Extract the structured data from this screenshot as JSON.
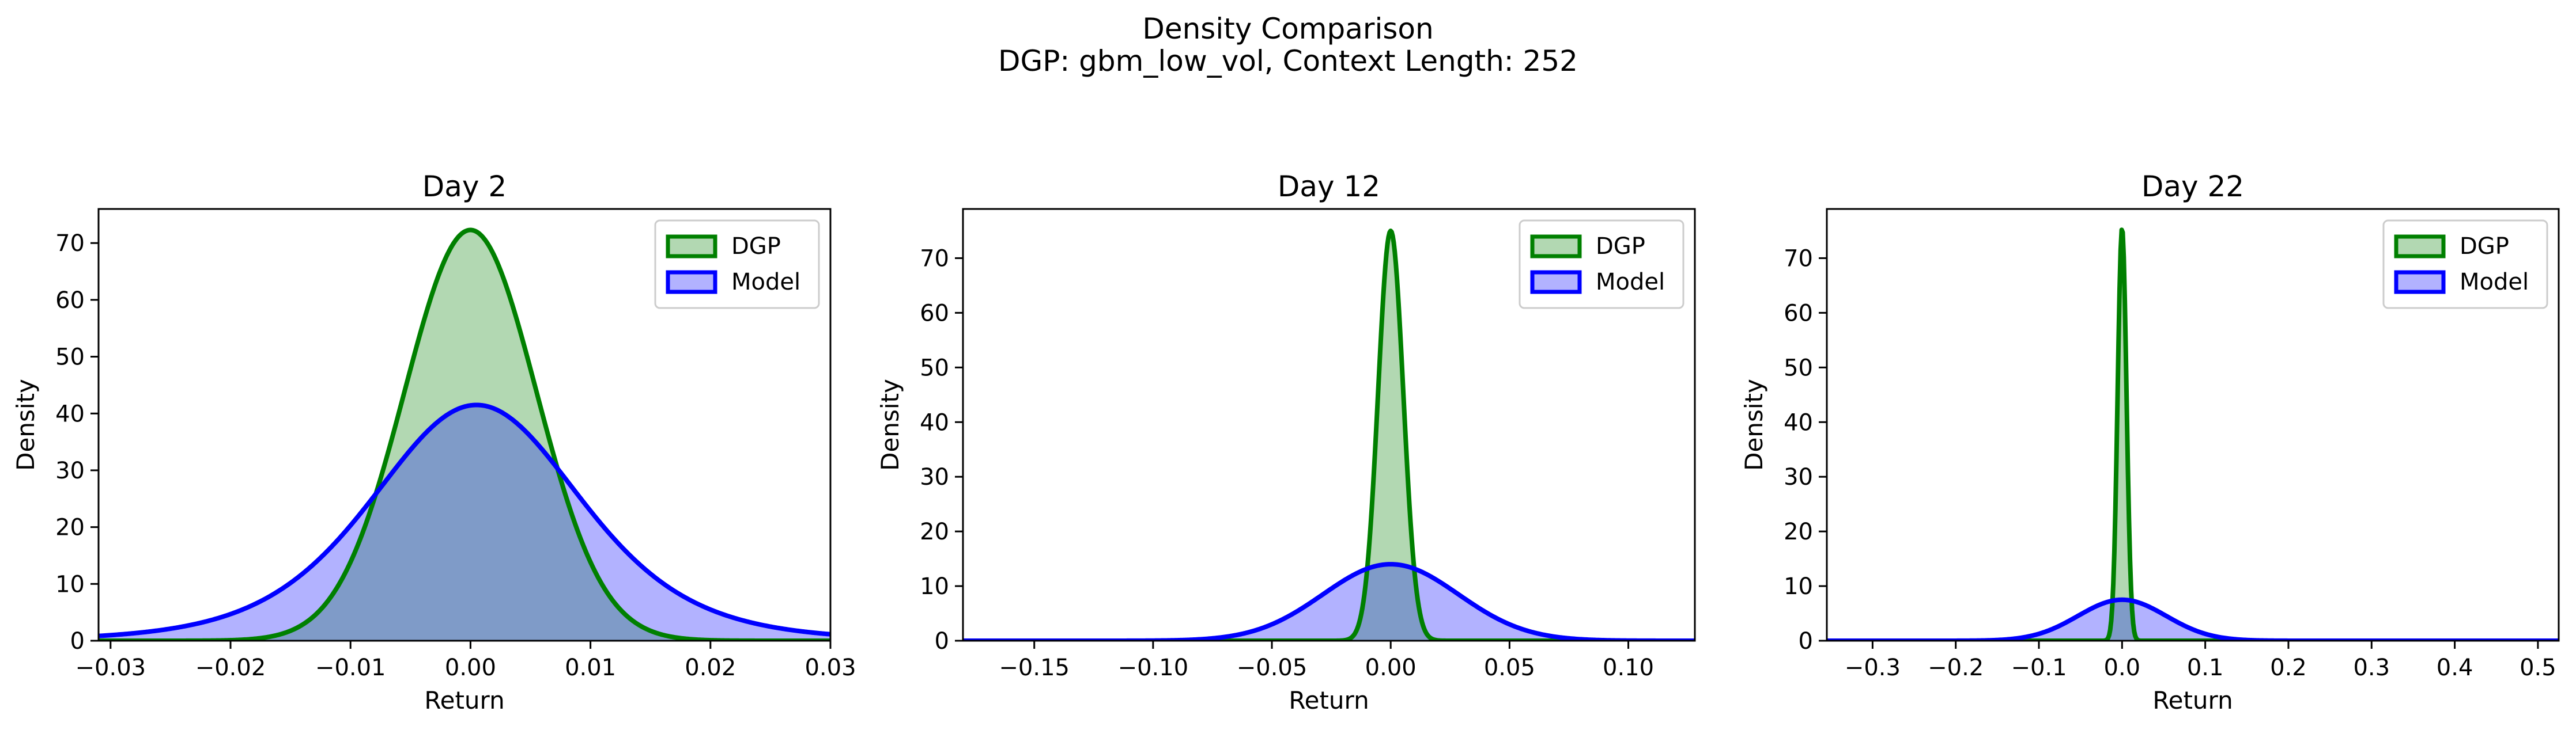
{
  "figure": {
    "title_line1": "Density Comparison",
    "title_line2": "DGP: gbm_low_vol, Context Length: 252"
  },
  "colors": {
    "dgp_line": "#008000",
    "dgp_fill": "#b2d8b2",
    "model_line": "#0000ff",
    "model_fill": "#b2b2ff",
    "overlap_fill": "#7f9bc8",
    "overlap_line": "#005050"
  },
  "chart_data": [
    {
      "type": "area",
      "title": "Day 2",
      "xlabel": "Return",
      "ylabel": "Density",
      "xlim": [
        -0.031,
        0.03
      ],
      "ylim": [
        0,
        76
      ],
      "xticks": [
        -0.03,
        -0.02,
        -0.01,
        0.0,
        0.01,
        0.02,
        0.03
      ],
      "xtick_labels": [
        "−0.03",
        "−0.02",
        "−0.01",
        "0.00",
        "0.01",
        "0.02",
        "0.03"
      ],
      "yticks": [
        0,
        10,
        20,
        30,
        40,
        50,
        60,
        70
      ],
      "ytick_labels": [
        "0",
        "10",
        "20",
        "30",
        "40",
        "50",
        "60",
        "70"
      ],
      "legend": "top-right",
      "series": [
        {
          "name": "DGP",
          "kind": "normal",
          "mean": 0.0,
          "peak": 72.3
        },
        {
          "name": "Model",
          "kind": "t",
          "mean": 0.0005,
          "peak": 41.5,
          "df": 6
        }
      ]
    },
    {
      "type": "area",
      "title": "Day 12",
      "xlabel": "Return",
      "ylabel": "Density",
      "xlim": [
        -0.18,
        0.128
      ],
      "ylim": [
        0,
        79
      ],
      "xticks": [
        -0.15,
        -0.1,
        -0.05,
        0.0,
        0.05,
        0.1
      ],
      "xtick_labels": [
        "−0.15",
        "−0.10",
        "−0.05",
        "0.00",
        "0.05",
        "0.10"
      ],
      "yticks": [
        0,
        10,
        20,
        30,
        40,
        50,
        60,
        70
      ],
      "ytick_labels": [
        "0",
        "10",
        "20",
        "30",
        "40",
        "50",
        "60",
        "70"
      ],
      "legend": "top-right",
      "series": [
        {
          "name": "DGP",
          "kind": "normal",
          "mean": 0.0,
          "peak": 75.0
        },
        {
          "name": "Model",
          "kind": "normal",
          "mean": 0.0,
          "peak": 14.0
        }
      ]
    },
    {
      "type": "area",
      "title": "Day 22",
      "xlabel": "Return",
      "ylabel": "Density",
      "xlim": [
        -0.355,
        0.525
      ],
      "ylim": [
        0,
        79
      ],
      "xticks": [
        -0.3,
        -0.2,
        -0.1,
        0.0,
        0.1,
        0.2,
        0.3,
        0.4,
        0.5
      ],
      "xtick_labels": [
        "−0.3",
        "−0.2",
        "−0.1",
        "0.0",
        "0.1",
        "0.2",
        "0.3",
        "0.4",
        "0.5"
      ],
      "yticks": [
        0,
        10,
        20,
        30,
        40,
        50,
        60,
        70
      ],
      "ytick_labels": [
        "0",
        "10",
        "20",
        "30",
        "40",
        "50",
        "60",
        "70"
      ],
      "legend": "top-right",
      "series": [
        {
          "name": "DGP",
          "kind": "normal",
          "mean": 0.0,
          "peak": 75.5
        },
        {
          "name": "Model",
          "kind": "normal",
          "mean": 0.0,
          "peak": 7.5
        }
      ]
    }
  ]
}
